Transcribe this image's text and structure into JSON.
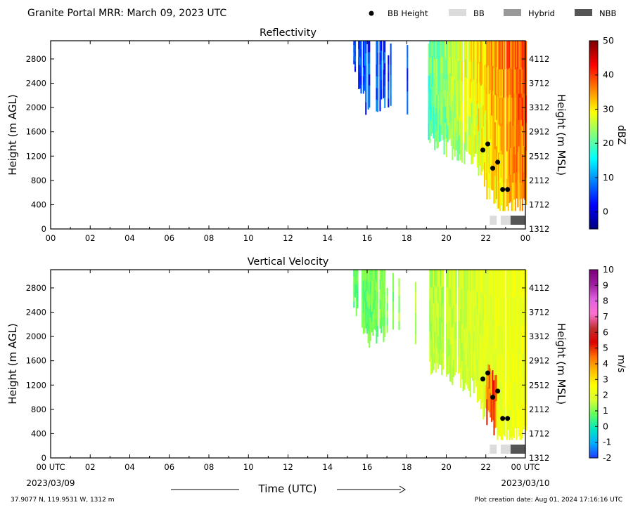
{
  "header": {
    "title": "Granite Portal MRR:  March 09, 2023 UTC",
    "legend": [
      {
        "label": "BB Height",
        "kind": "dot",
        "color": "#000000"
      },
      {
        "label": "BB",
        "kind": "box",
        "color": "#dcdcdc"
      },
      {
        "label": "Hybrid",
        "kind": "box",
        "color": "#999999"
      },
      {
        "label": "NBB",
        "kind": "box",
        "color": "#555555"
      }
    ]
  },
  "footer": {
    "location": "37.9077 N, 119.9531 W, 1312 m",
    "creation": "Plot creation date: Aug 01, 2024 17:16:16 UTC",
    "time_label": "Time (UTC)",
    "start_date": "2023/03/09",
    "end_date": "2023/03/10"
  },
  "chart_data": [
    {
      "type": "heatmap",
      "title": "Reflectivity",
      "ylabel": "Height (m AGL)",
      "y2label": "Height (m MSL)",
      "colorbar_label": "dBZ",
      "x_ticks": [
        "00",
        "02",
        "04",
        "06",
        "08",
        "10",
        "12",
        "14",
        "16",
        "18",
        "20",
        "22",
        "00"
      ],
      "xlim": [
        0,
        24
      ],
      "ylim": [
        0,
        3100
      ],
      "y_ticks": [
        0,
        400,
        800,
        1200,
        1600,
        2000,
        2400,
        2800
      ],
      "y2_ticks": [
        1312,
        1712,
        2112,
        2512,
        2912,
        3312,
        3712,
        4112
      ],
      "colorbar_ticks": [
        0,
        10,
        20,
        30,
        40,
        50
      ],
      "colorbar_range": [
        -5,
        50
      ],
      "colorbar_colors": [
        "#00007f",
        "#0000ff",
        "#007fff",
        "#00ffff",
        "#7fff7f",
        "#ffff00",
        "#ff7f00",
        "#ff0000",
        "#7f0000"
      ],
      "bb_height": [
        {
          "x": 21.85,
          "y": 1300
        },
        {
          "x": 22.1,
          "y": 1400
        },
        {
          "x": 22.35,
          "y": 1000
        },
        {
          "x": 22.6,
          "y": 1100
        },
        {
          "x": 22.85,
          "y": 650
        },
        {
          "x": 23.1,
          "y": 650
        }
      ],
      "bb_type_bar": [
        {
          "start": 22.2,
          "end": 22.55,
          "type": "BB"
        },
        {
          "start": 22.75,
          "end": 23.25,
          "type": "BB"
        },
        {
          "start": 23.25,
          "end": 24.0,
          "type": "NBB"
        }
      ],
      "echo_top_m": 3100,
      "echo_base_profile": [
        [
          15.3,
          2500
        ],
        [
          16.0,
          1900
        ],
        [
          17.5,
          2100
        ],
        [
          18.5,
          1650
        ],
        [
          19.3,
          1400
        ],
        [
          20.5,
          1200
        ],
        [
          21.5,
          1050
        ],
        [
          22.0,
          600
        ],
        [
          22.5,
          300
        ],
        [
          23.2,
          300
        ],
        [
          24.0,
          300
        ]
      ]
    },
    {
      "type": "heatmap",
      "title": "Vertical Velocity",
      "ylabel": "Height (m AGL)",
      "y2label": "Height (m MSL)",
      "colorbar_label": "m/s",
      "x_ticks": [
        "00 UTC",
        "02",
        "04",
        "06",
        "08",
        "10",
        "12",
        "14",
        "16",
        "18",
        "20",
        "22",
        "00 UTC"
      ],
      "xlim": [
        0,
        24
      ],
      "ylim": [
        0,
        3100
      ],
      "y_ticks": [
        0,
        400,
        800,
        1200,
        1600,
        2000,
        2400,
        2800
      ],
      "y2_ticks": [
        1312,
        1712,
        2112,
        2512,
        2912,
        3312,
        3712,
        4112
      ],
      "colorbar_ticks": [
        -2,
        -1,
        0,
        1,
        2,
        3,
        4,
        5,
        6,
        7,
        8,
        9,
        10
      ],
      "colorbar_range": [
        -2,
        10
      ],
      "colorbar_colors": [
        "#1f3fff",
        "#00b0ff",
        "#00e8c0",
        "#60ff60",
        "#d8ff30",
        "#ffff00",
        "#ffc000",
        "#ff7000",
        "#e00000",
        "#c03030",
        "#ff70d0",
        "#e060e0",
        "#a020a0",
        "#800080"
      ],
      "bb_height": [
        {
          "x": 21.85,
          "y": 1300
        },
        {
          "x": 22.1,
          "y": 1400
        },
        {
          "x": 22.35,
          "y": 1000
        },
        {
          "x": 22.6,
          "y": 1100
        },
        {
          "x": 22.85,
          "y": 650
        },
        {
          "x": 23.1,
          "y": 650
        }
      ],
      "bb_type_bar": [
        {
          "start": 22.2,
          "end": 22.55,
          "type": "BB"
        },
        {
          "start": 22.75,
          "end": 23.25,
          "type": "BB"
        },
        {
          "start": 23.25,
          "end": 24.0,
          "type": "NBB"
        }
      ],
      "echo_top_m": 3100,
      "echo_base_profile": [
        [
          15.3,
          2500
        ],
        [
          16.0,
          1900
        ],
        [
          17.5,
          2100
        ],
        [
          18.5,
          1650
        ],
        [
          19.3,
          1400
        ],
        [
          20.5,
          1200
        ],
        [
          21.5,
          1050
        ],
        [
          22.0,
          600
        ],
        [
          22.5,
          300
        ],
        [
          23.2,
          300
        ],
        [
          24.0,
          300
        ]
      ]
    }
  ]
}
